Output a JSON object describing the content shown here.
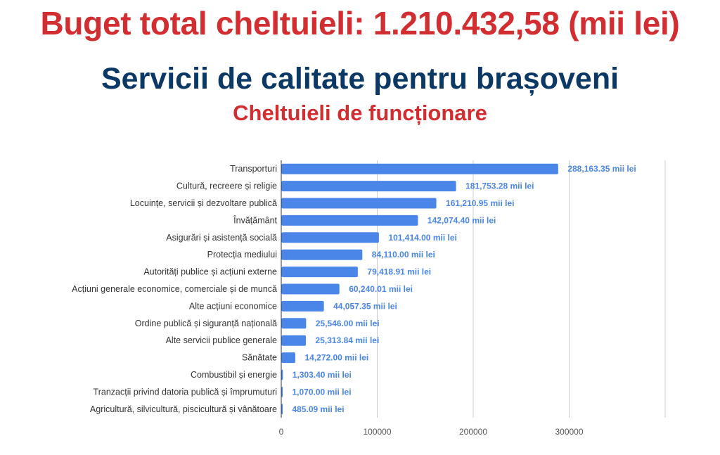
{
  "header": {
    "title": "Buget total cheltuieli: 1.210.432,58 (mii lei)",
    "subtitle": "Servicii de calitate pentru brașoveni",
    "section": "Cheltuieli de funcționare"
  },
  "colors": {
    "bar": "#4a86e8",
    "title_red": "#d22d30",
    "title_blue": "#0c3866"
  },
  "chart_data": {
    "type": "bar",
    "orientation": "horizontal",
    "categories": [
      "Transporturi",
      "Cultură, recreere și religie",
      "Locuințe, servicii și dezvoltare publică",
      "Învățământ",
      "Asigurări și asistență socială",
      "Protecția mediului",
      "Autorități publice și acțiuni externe",
      "Acțiuni generale economice, comerciale și de muncă",
      "Alte acțiuni economice",
      "Ordine publică și siguranță națională",
      "Alte servicii publice generale",
      "Sănătate",
      "Combustibil și energie",
      "Tranzacții privind datoria publică și împrumuturi",
      "Agricultură, silvicultură, piscicultură și vânătoare"
    ],
    "values": [
      288163.35,
      181753.28,
      161210.95,
      142074.4,
      101414.0,
      84110.0,
      79418.91,
      60240.01,
      44057.35,
      25546.0,
      25313.84,
      14272.0,
      1303.4,
      1070.0,
      485.09
    ],
    "value_labels": [
      "288,163.35 mii lei",
      "181,753.28 mii lei",
      "161,210.95 mii lei",
      "142,074.40 mii lei",
      "101,414.00 mii lei",
      "84,110.00 mii lei",
      "79,418.91 mii lei",
      "60,240.01 mii lei",
      "44,057.35 mii lei",
      "25,546.00 mii lei",
      "25,313.84 mii lei",
      "14,272.00 mii lei",
      "1,303.40 mii lei",
      "1,070.00 mii lei",
      "485.09 mii lei"
    ],
    "x_ticks": [
      0,
      100000,
      200000,
      300000
    ],
    "xlim": [
      0,
      400000
    ],
    "grid": true,
    "legend": "none"
  }
}
